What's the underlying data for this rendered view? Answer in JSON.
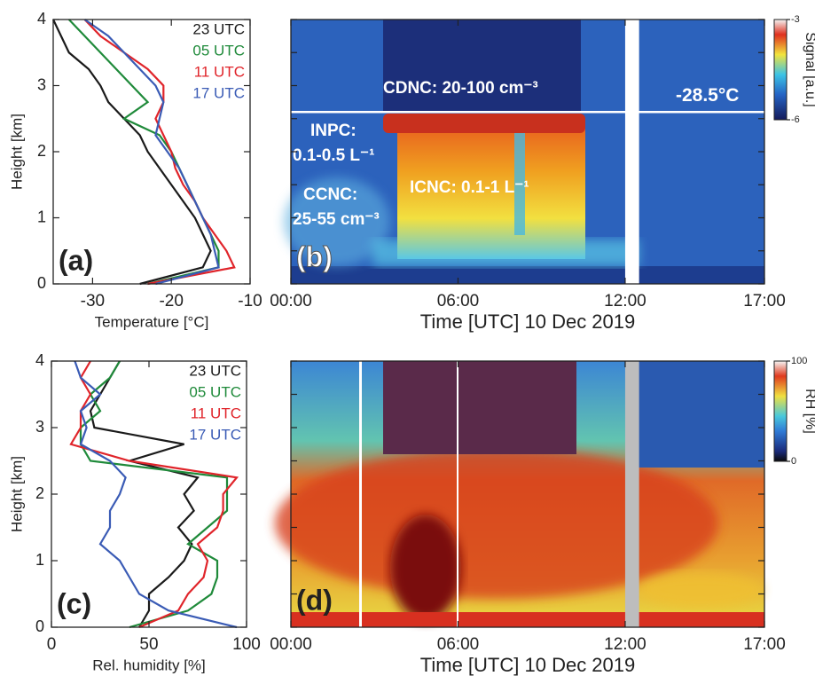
{
  "chart_data": [
    {
      "type": "line",
      "panel_label": "(a)",
      "xlabel": "Temperature [°C]",
      "ylabel": "Height [km]",
      "xlim": [
        -35,
        -10
      ],
      "xticks": [
        -30,
        -20,
        -10
      ],
      "ylim": [
        0,
        4
      ],
      "yticks": [
        0,
        1,
        2,
        3,
        4
      ],
      "y": [
        0,
        0.25,
        0.5,
        0.75,
        1,
        1.25,
        1.5,
        1.75,
        2,
        2.25,
        2.5,
        2.75,
        3,
        3.25,
        3.5,
        3.75,
        4
      ],
      "series": [
        {
          "name": "23 UTC",
          "color": "#1a1a1a",
          "values": [
            -24,
            -16,
            -15,
            -16,
            -17,
            -18.5,
            -20,
            -21.5,
            -23,
            -24,
            -26,
            -28,
            -29,
            -30.5,
            -33,
            -34,
            -35
          ]
        },
        {
          "name": "05 UTC",
          "color": "#1f8a3a",
          "values": [
            -23,
            -14,
            -14,
            -15,
            -16,
            -17,
            -18,
            -19,
            -20,
            -21.5,
            -26,
            -23,
            -25,
            -27,
            -29,
            -31,
            -33
          ]
        },
        {
          "name": "11 UTC",
          "color": "#e0242a",
          "values": [
            -23,
            -12,
            -13,
            -14.5,
            -16,
            -17,
            -18.5,
            -19.5,
            -20,
            -21,
            -22,
            -21,
            -21,
            -23,
            -26,
            -29,
            -31
          ]
        },
        {
          "name": "17 UTC",
          "color": "#3a5bb5",
          "values": [
            -22,
            -14,
            -14.5,
            -15,
            -16,
            -17,
            -18,
            -19,
            -20.5,
            -22,
            -21.5,
            -21,
            -22,
            -24,
            -26,
            -28,
            -31
          ]
        }
      ]
    },
    {
      "type": "heatmap",
      "panel_label": "(b)",
      "xlabel": "Time [UTC] 10 Dec 2019",
      "xlim": [
        0,
        17
      ],
      "xticks": [
        {
          "value": 0,
          "label": "00:00"
        },
        {
          "value": 6,
          "label": "06:00"
        },
        {
          "value": 12,
          "label": "12:00"
        },
        {
          "value": 17,
          "label": "17:00"
        }
      ],
      "ylim": [
        0,
        4
      ],
      "yticks": [
        0,
        0.5,
        1,
        1.5,
        2,
        2.5,
        3,
        3.5,
        4
      ],
      "colorbar": {
        "label": "Signal [a.u.]",
        "lim": [
          -6,
          -3
        ],
        "ticks": [
          -6,
          -3
        ],
        "gradient": "cb-signal"
      },
      "isotherm": {
        "height": 2.6,
        "label": "-28.5°C"
      },
      "gaps": [
        [
          12,
          12.5
        ]
      ],
      "gap_color": "#ffffff",
      "annotations": [
        "CDNC: 20-100 cm⁻³",
        "INPC:",
        "0.1-0.5 L⁻¹",
        "CCNC:",
        "25-55 cm⁻³",
        "ICNC: 0.1-1 L⁻¹"
      ]
    },
    {
      "type": "line",
      "panel_label": "(c)",
      "xlabel": "Rel. humidity [%]",
      "ylabel": "Height [km]",
      "xlim": [
        0,
        100
      ],
      "xticks": [
        0,
        50,
        100
      ],
      "ylim": [
        0,
        4
      ],
      "yticks": [
        0,
        1,
        2,
        3,
        4
      ],
      "y": [
        0,
        0.25,
        0.5,
        0.75,
        1,
        1.25,
        1.5,
        1.75,
        2,
        2.25,
        2.5,
        2.75,
        3,
        3.25,
        3.5,
        3.75,
        4
      ],
      "series": [
        {
          "name": "23 UTC",
          "color": "#1a1a1a",
          "values": [
            45,
            50,
            50,
            60,
            68,
            72,
            65,
            73,
            68,
            75,
            40,
            68,
            22,
            20,
            25,
            30,
            35
          ]
        },
        {
          "name": "05 UTC",
          "color": "#1f8a3a",
          "values": [
            40,
            70,
            82,
            85,
            85,
            70,
            80,
            90,
            90,
            90,
            20,
            15,
            15,
            25,
            20,
            30,
            35
          ]
        },
        {
          "name": "11 UTC",
          "color": "#e0242a",
          "values": [
            45,
            65,
            70,
            78,
            80,
            75,
            85,
            88,
            88,
            95,
            40,
            10,
            15,
            15,
            20,
            15,
            20
          ]
        },
        {
          "name": "17 UTC",
          "color": "#3a5bb5",
          "values": [
            95,
            60,
            45,
            40,
            35,
            25,
            30,
            30,
            35,
            38,
            30,
            15,
            18,
            15,
            25,
            15,
            12
          ]
        }
      ]
    },
    {
      "type": "heatmap",
      "panel_label": "(d)",
      "xlabel": "Time [UTC] 10 Dec 2019",
      "xlim": [
        0,
        17
      ],
      "xticks": [
        {
          "value": 0,
          "label": "00:00"
        },
        {
          "value": 6,
          "label": "06:00"
        },
        {
          "value": 12,
          "label": "12:00"
        },
        {
          "value": 17,
          "label": "17:00"
        }
      ],
      "ylim": [
        0,
        4
      ],
      "yticks": [
        0,
        0.5,
        1,
        1.5,
        2,
        2.5,
        3,
        3.5,
        4
      ],
      "colorbar": {
        "label": "RH [%]",
        "lim": [
          0,
          100
        ],
        "ticks": [
          0,
          100
        ],
        "gradient": "cb-rh"
      },
      "gaps": [
        [
          12,
          12.5
        ]
      ],
      "gap_color": "#bdbdbd"
    }
  ]
}
